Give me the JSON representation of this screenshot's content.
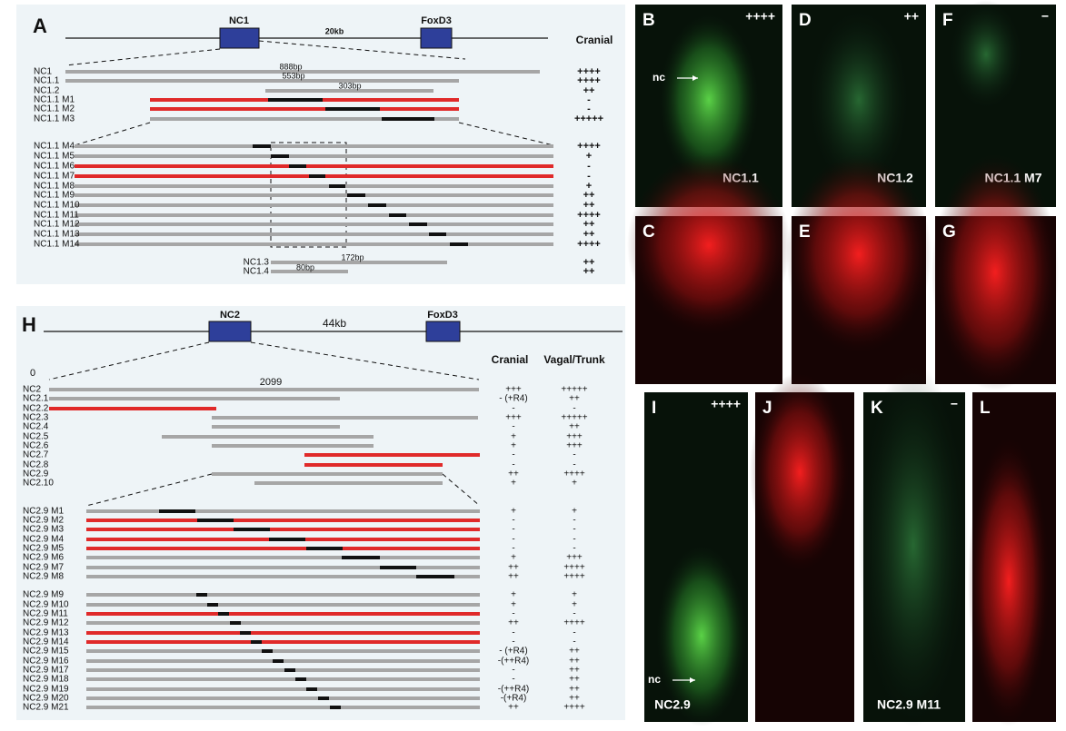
{
  "panel_a": {
    "label": "A",
    "gene_labels": [
      "NC1",
      "FoxD3"
    ],
    "distance": "20kb",
    "column_header": "Cranial",
    "constructs": [
      {
        "name": "NC1",
        "size": "888bp",
        "cranial": "++++"
      },
      {
        "name": "NC1.1",
        "size": "553bp",
        "cranial": "++++"
      },
      {
        "name": "NC1.2",
        "size": "303bp",
        "cranial": "++"
      },
      {
        "name": "NC1.1 M1",
        "cranial": "-"
      },
      {
        "name": "NC1.1 M2",
        "cranial": "-"
      },
      {
        "name": "NC1.1 M3",
        "cranial": "+++++"
      },
      {
        "name": "NC1.1 M4",
        "cranial": "++++"
      },
      {
        "name": "NC1.1 M5",
        "cranial": "+"
      },
      {
        "name": "NC1.1 M6",
        "cranial": "-"
      },
      {
        "name": "NC1.1 M7",
        "cranial": "-"
      },
      {
        "name": "NC1.1 M8",
        "cranial": "+"
      },
      {
        "name": "NC1.1 M9",
        "cranial": "++"
      },
      {
        "name": "NC1.1 M10",
        "cranial": "++"
      },
      {
        "name": "NC1.1 M11",
        "cranial": "++++"
      },
      {
        "name": "NC1.1 M12",
        "cranial": "++"
      },
      {
        "name": "NC1.1 M13",
        "cranial": "++"
      },
      {
        "name": "NC1.1 M14",
        "cranial": "++++"
      },
      {
        "name": "NC1.3",
        "size": "172bp",
        "cranial": "++"
      },
      {
        "name": "NC1.4",
        "size": "80bp",
        "cranial": "++"
      }
    ]
  },
  "panel_h": {
    "label": "H",
    "gene_labels": [
      "NC2",
      "FoxD3"
    ],
    "distance": "44kb",
    "column_headers": [
      "Cranial",
      "Vagal/Trunk"
    ],
    "scale_start": "0",
    "scale_end": "2099",
    "constructs": [
      {
        "name": "NC2",
        "cranial": "+++",
        "vagal_trunk": "+++++"
      },
      {
        "name": "NC2.1",
        "cranial": "- (+R4)",
        "vagal_trunk": "++"
      },
      {
        "name": "NC2.2",
        "cranial": "-",
        "vagal_trunk": "-"
      },
      {
        "name": "NC2.3",
        "cranial": "+++",
        "vagal_trunk": "+++++"
      },
      {
        "name": "NC2.4",
        "cranial": "-",
        "vagal_trunk": "++"
      },
      {
        "name": "NC2.5",
        "cranial": "+",
        "vagal_trunk": "+++"
      },
      {
        "name": "NC2.6",
        "cranial": "+",
        "vagal_trunk": "+++"
      },
      {
        "name": "NC2.7",
        "cranial": "-",
        "vagal_trunk": "-"
      },
      {
        "name": "NC2.8",
        "cranial": "-",
        "vagal_trunk": "-"
      },
      {
        "name": "NC2.9",
        "cranial": "++",
        "vagal_trunk": "++++"
      },
      {
        "name": "NC2.10",
        "cranial": "+",
        "vagal_trunk": "+"
      },
      {
        "name": "NC2.9 M1",
        "cranial": "+",
        "vagal_trunk": "+"
      },
      {
        "name": "NC2.9 M2",
        "cranial": "-",
        "vagal_trunk": "-"
      },
      {
        "name": "NC2.9 M3",
        "cranial": "-",
        "vagal_trunk": "-"
      },
      {
        "name": "NC2.9 M4",
        "cranial": "-",
        "vagal_trunk": "-"
      },
      {
        "name": "NC2.9 M5",
        "cranial": "-",
        "vagal_trunk": "-"
      },
      {
        "name": "NC2.9 M6",
        "cranial": "+",
        "vagal_trunk": "+++"
      },
      {
        "name": "NC2.9 M7",
        "cranial": "++",
        "vagal_trunk": "++++"
      },
      {
        "name": "NC2.9 M8",
        "cranial": "++",
        "vagal_trunk": "++++"
      },
      {
        "name": "NC2.9 M9",
        "cranial": "+",
        "vagal_trunk": "+"
      },
      {
        "name": "NC2.9 M10",
        "cranial": "+",
        "vagal_trunk": "+"
      },
      {
        "name": "NC2.9 M11",
        "cranial": "-",
        "vagal_trunk": "-"
      },
      {
        "name": "NC2.9 M12",
        "cranial": "++",
        "vagal_trunk": "++++"
      },
      {
        "name": "NC2.9 M13",
        "cranial": "-",
        "vagal_trunk": "-"
      },
      {
        "name": "NC2.9 M14",
        "cranial": "-",
        "vagal_trunk": "-"
      },
      {
        "name": "NC2.9 M15",
        "cranial": "- (+R4)",
        "vagal_trunk": "++"
      },
      {
        "name": "NC2.9 M16",
        "cranial": "-(++R4)",
        "vagal_trunk": "++"
      },
      {
        "name": "NC2.9 M17",
        "cranial": "-",
        "vagal_trunk": "++"
      },
      {
        "name": "NC2.9 M18",
        "cranial": "-",
        "vagal_trunk": "++"
      },
      {
        "name": "NC2.9 M19",
        "cranial": "-(++R4)",
        "vagal_trunk": "++"
      },
      {
        "name": "NC2.9 M20",
        "cranial": "-(+R4)",
        "vagal_trunk": "++"
      },
      {
        "name": "NC2.9 M21",
        "cranial": "++",
        "vagal_trunk": "++++"
      }
    ]
  },
  "images": [
    {
      "label": "B",
      "score": "++++",
      "construct": "NC1.1",
      "annotation": "nc"
    },
    {
      "label": "D",
      "score": "++",
      "construct": "NC1.2"
    },
    {
      "label": "F",
      "score": "−",
      "construct": "NC1.1 M7"
    },
    {
      "label": "C"
    },
    {
      "label": "E"
    },
    {
      "label": "G"
    },
    {
      "label": "I",
      "score": "++++",
      "construct": "NC2.9",
      "annotation": "nc"
    },
    {
      "label": "J"
    },
    {
      "label": "K",
      "score": "−",
      "construct": "NC2.9 M11"
    },
    {
      "label": "L"
    }
  ]
}
